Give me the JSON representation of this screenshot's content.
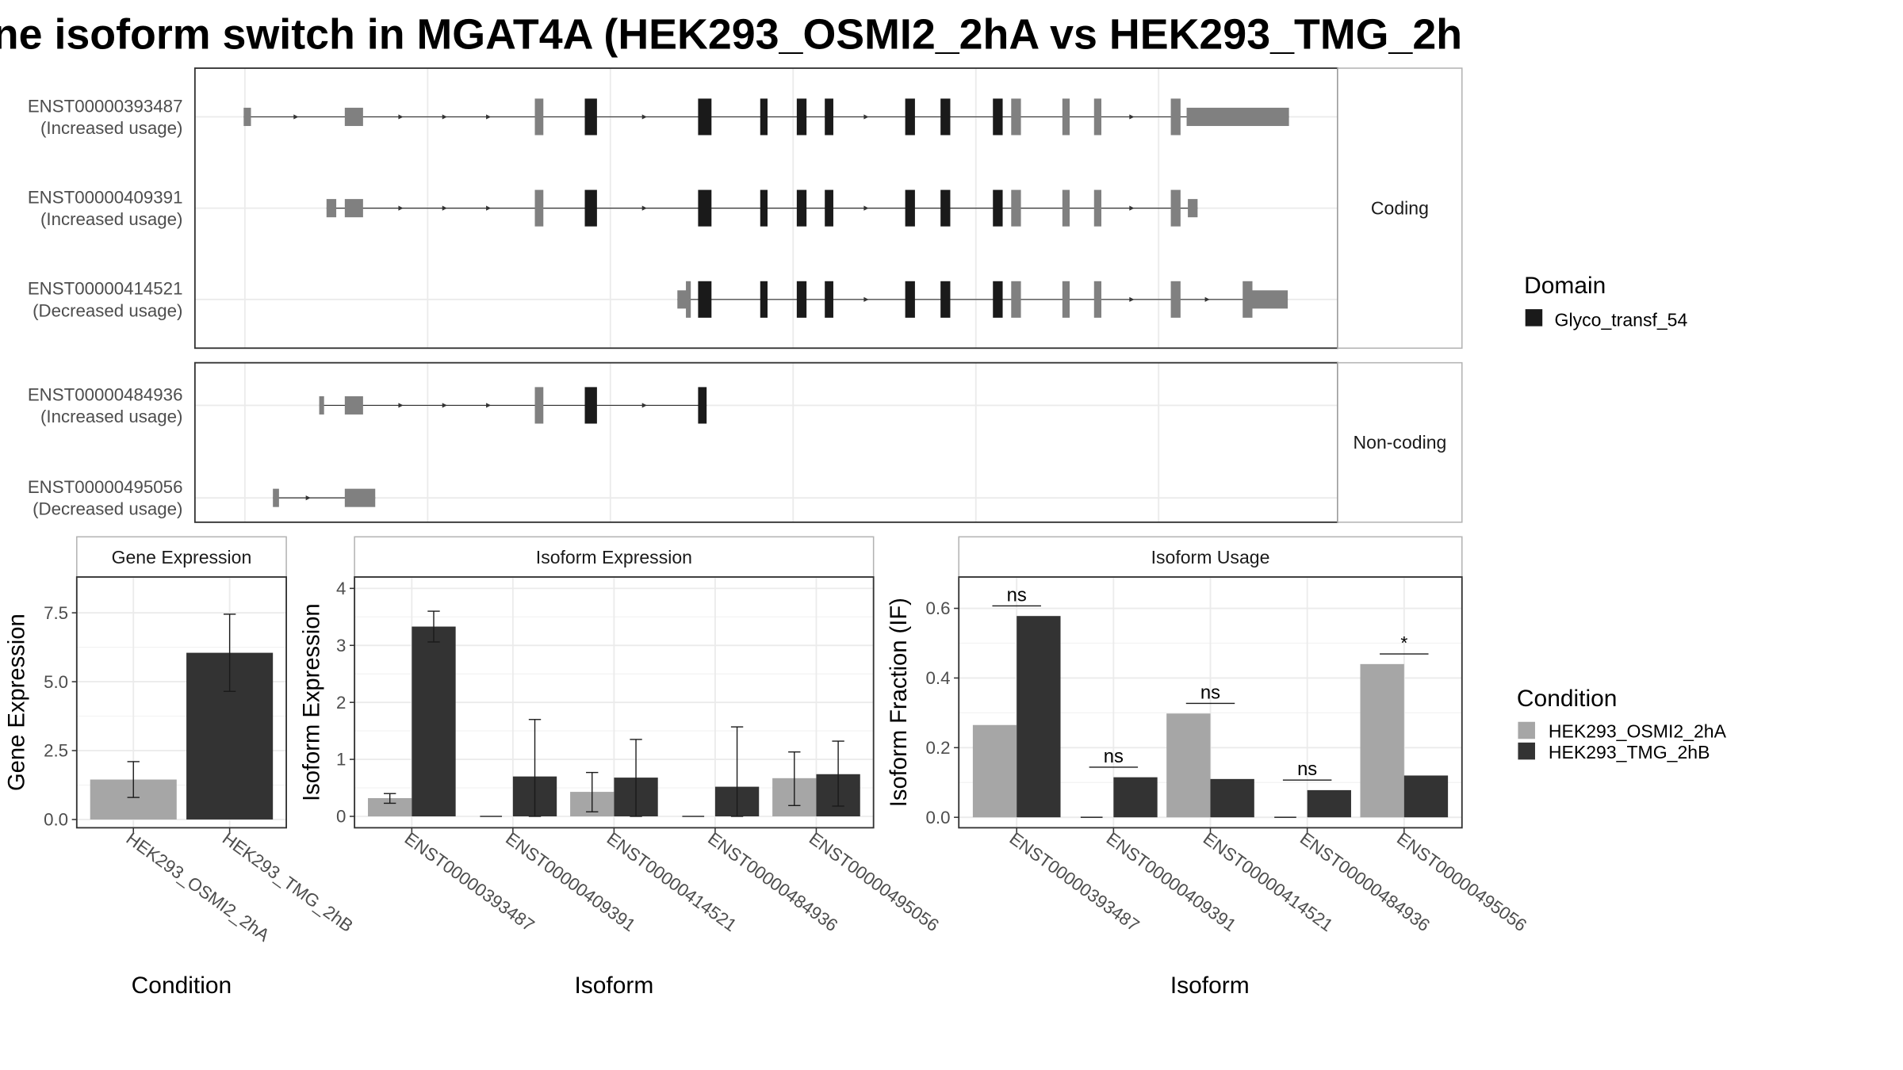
{
  "title": "ne isoform switch in MGAT4A (HEK293_OSMI2_2hA vs HEK293_TMG_2h",
  "legends": {
    "domain": {
      "title": "Domain",
      "items": [
        {
          "label": "Glyco_transf_54",
          "color": "#1a1a1a"
        }
      ]
    },
    "condition": {
      "title": "Condition",
      "items": [
        {
          "label": "HEK293_OSMI2_2hA",
          "color": "#a6a6a6"
        },
        {
          "label": "HEK293_TMG_2hB",
          "color": "#333333"
        }
      ]
    }
  },
  "structure": {
    "groups": [
      {
        "label": "Coding",
        "transcripts": [
          {
            "id": "ENST00000393487",
            "annotation": "(Increased usage)",
            "line": [
              200,
              1058
            ],
            "exons": [
              [
                200,
                206,
                "s"
              ],
              [
                283,
                298,
                "m"
              ],
              [
                439,
                446,
                "t"
              ],
              [
                480,
                490,
                "D"
              ],
              [
                573,
                584,
                "D"
              ],
              [
                624,
                630,
                "D"
              ],
              [
                654,
                662,
                "D"
              ],
              [
                677,
                684,
                "D"
              ],
              [
                743,
                751,
                "D"
              ],
              [
                772,
                780,
                "D"
              ],
              [
                815,
                823,
                "D"
              ],
              [
                830,
                838,
                "T"
              ],
              [
                872,
                878,
                "t"
              ],
              [
                898,
                904,
                "t"
              ],
              [
                961,
                969,
                "t"
              ],
              [
                974,
                1058,
                "m"
              ]
            ],
            "arrows": [
              244,
              330,
              366,
              402,
              530,
              712,
              930
            ]
          },
          {
            "id": "ENST00000409391",
            "annotation": "(Increased usage)",
            "line": [
              268,
              983
            ],
            "exons": [
              [
                268,
                276,
                "m"
              ],
              [
                283,
                298,
                "m"
              ],
              [
                439,
                446,
                "t"
              ],
              [
                480,
                490,
                "D"
              ],
              [
                573,
                584,
                "D"
              ],
              [
                624,
                630,
                "D"
              ],
              [
                654,
                662,
                "D"
              ],
              [
                677,
                684,
                "D"
              ],
              [
                743,
                751,
                "D"
              ],
              [
                772,
                780,
                "D"
              ],
              [
                815,
                823,
                "D"
              ],
              [
                830,
                838,
                "T"
              ],
              [
                872,
                878,
                "t"
              ],
              [
                898,
                904,
                "t"
              ],
              [
                961,
                969,
                "t"
              ],
              [
                975,
                983,
                "m"
              ]
            ],
            "arrows": [
              330,
              366,
              402,
              530,
              712,
              930
            ]
          },
          {
            "id": "ENST00000414521",
            "annotation": "(Decreased usage)",
            "line": [
              556,
              1057
            ],
            "exons": [
              [
                556,
                564,
                "m"
              ],
              [
                563,
                567,
                "t"
              ],
              [
                573,
                584,
                "D"
              ],
              [
                624,
                630,
                "D"
              ],
              [
                654,
                662,
                "D"
              ],
              [
                677,
                684,
                "D"
              ],
              [
                743,
                751,
                "D"
              ],
              [
                772,
                780,
                "D"
              ],
              [
                815,
                823,
                "D"
              ],
              [
                830,
                838,
                "T"
              ],
              [
                872,
                878,
                "t"
              ],
              [
                898,
                904,
                "t"
              ],
              [
                961,
                969,
                "t"
              ],
              [
                1020,
                1028,
                "t"
              ],
              [
                1026,
                1057,
                "m"
              ]
            ],
            "arrows": [
              712,
              930,
              992
            ]
          }
        ]
      },
      {
        "label": "Non-coding",
        "transcripts": [
          {
            "id": "ENST00000484936",
            "annotation": "(Increased usage)",
            "line": [
              262,
              580
            ],
            "exons": [
              [
                262,
                266,
                "s"
              ],
              [
                283,
                298,
                "m"
              ],
              [
                439,
                446,
                "t"
              ],
              [
                480,
                490,
                "D"
              ],
              [
                573,
                580,
                "D"
              ]
            ],
            "arrows": [
              330,
              366,
              402,
              530
            ]
          },
          {
            "id": "ENST00000495056",
            "annotation": "(Decreased usage)",
            "line": [
              224,
              308
            ],
            "exons": [
              [
                224,
                229,
                "s"
              ],
              [
                283,
                308,
                "m"
              ]
            ],
            "arrows": [
              254
            ]
          }
        ]
      }
    ]
  },
  "chart_data": [
    {
      "type": "bar",
      "title": "Gene Expression",
      "xlabel": "Condition",
      "ylabel": "Gene Expression",
      "categories": [
        "HEK293_OSMI2_2hA",
        "HEK293_TMG_2hB"
      ],
      "values": [
        1.45,
        6.05
      ],
      "errors": [
        [
          0.8,
          2.1
        ],
        [
          4.65,
          7.45
        ]
      ],
      "ylim": [
        -0.3,
        8.8
      ],
      "yticks": [
        "0.0",
        "2.5",
        "5.0",
        "7.5"
      ],
      "ytick_values": [
        0,
        2.5,
        5,
        7.5
      ]
    },
    {
      "type": "bar",
      "title": "Isoform Expression",
      "xlabel": "Isoform",
      "ylabel": "Isoform Expression",
      "categories": [
        "ENST00000393487",
        "ENST00000409391",
        "ENST00000414521",
        "ENST00000484936",
        "ENST00000495056"
      ],
      "series": [
        {
          "name": "HEK293_OSMI2_2hA",
          "values": [
            0.32,
            0.0,
            0.43,
            0.0,
            0.67
          ],
          "errors": [
            [
              0.23,
              0.4
            ],
            [
              0.0,
              0.0
            ],
            [
              0.08,
              0.77
            ],
            [
              0.0,
              0.0
            ],
            [
              0.19,
              1.13
            ]
          ]
        },
        {
          "name": "HEK293_TMG_2hB",
          "values": [
            3.33,
            0.7,
            0.68,
            0.52,
            0.74
          ],
          "errors": [
            [
              3.06,
              3.6
            ],
            [
              0.0,
              1.7
            ],
            [
              0.0,
              1.35
            ],
            [
              0.0,
              1.57
            ],
            [
              0.18,
              1.32
            ]
          ]
        }
      ],
      "ylim": [
        -0.2,
        4.2
      ],
      "yticks": [
        "0",
        "1",
        "2",
        "3",
        "4"
      ],
      "ytick_values": [
        0,
        1,
        2,
        3,
        4
      ]
    },
    {
      "type": "bar",
      "title": "Isoform Usage",
      "xlabel": "Isoform",
      "ylabel": "Isoform Fraction (IF)",
      "categories": [
        "ENST00000393487",
        "ENST00000409391",
        "ENST00000414521",
        "ENST00000484936",
        "ENST00000495056"
      ],
      "series": [
        {
          "name": "HEK293_OSMI2_2hA",
          "values": [
            0.265,
            0.0,
            0.298,
            0.0,
            0.44
          ]
        },
        {
          "name": "HEK293_TMG_2hB",
          "values": [
            0.578,
            0.115,
            0.11,
            0.078,
            0.12
          ]
        }
      ],
      "significance": [
        {
          "label": "ns",
          "y": 0.607
        },
        {
          "label": "ns",
          "y": 0.144
        },
        {
          "label": "ns",
          "y": 0.327
        },
        {
          "label": "ns",
          "y": 0.107
        },
        {
          "label": "*",
          "y": 0.469
        }
      ],
      "ylim": [
        -0.03,
        0.69
      ],
      "yticks": [
        "0.0",
        "0.2",
        "0.4",
        "0.6"
      ],
      "ytick_values": [
        0,
        0.2,
        0.4,
        0.6
      ]
    }
  ]
}
